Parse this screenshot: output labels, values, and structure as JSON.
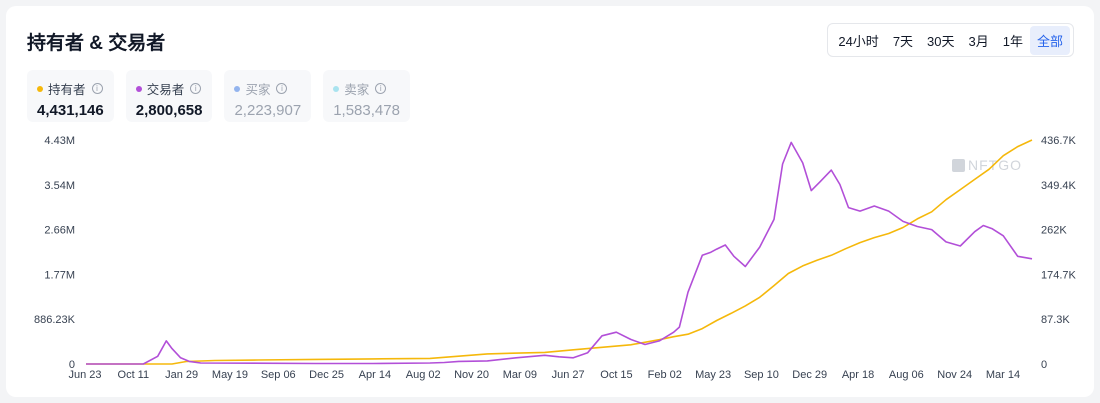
{
  "header": {
    "title": "持有者 & 交易者"
  },
  "range_tabs": [
    {
      "label": "24小时",
      "active": false
    },
    {
      "label": "7天",
      "active": false
    },
    {
      "label": "30天",
      "active": false
    },
    {
      "label": "3月",
      "active": false
    },
    {
      "label": "1年",
      "active": false
    },
    {
      "label": "全部",
      "active": true
    }
  ],
  "legend": [
    {
      "label": "持有者",
      "value": "4,431,146",
      "color": "#f5b80b",
      "enabled": true
    },
    {
      "label": "交易者",
      "value": "2,800,658",
      "color": "#b24fd8",
      "enabled": true
    },
    {
      "label": "买家",
      "value": "2,223,907",
      "color": "#93b4ee",
      "enabled": false
    },
    {
      "label": "卖家",
      "value": "1,583,478",
      "color": "#a9e3ef",
      "enabled": false
    }
  ],
  "watermark": "NFTGO",
  "chart_data": {
    "type": "line",
    "x_tick_labels": [
      "Jun 23",
      "Oct 11",
      "Jan 29",
      "May 19",
      "Sep 06",
      "Dec 25",
      "Apr 14",
      "Aug 02",
      "Nov 20",
      "Mar 09",
      "Jun 27",
      "Oct 15",
      "Feb 02",
      "May 23",
      "Sep 10",
      "Dec 29",
      "Apr 18",
      "Aug 06",
      "Nov 24",
      "Mar 14"
    ],
    "y_left_ticks": [
      "0",
      "886.23K",
      "1.77M",
      "2.66M",
      "3.54M",
      "4.43M"
    ],
    "y_right_ticks": [
      "0",
      "87.3K",
      "174.7K",
      "262K",
      "349.4K",
      "436.7K"
    ],
    "y_left_range": [
      0,
      4430000
    ],
    "y_right_range": [
      0,
      436700
    ],
    "grid": false,
    "series": [
      {
        "name": "持有者",
        "axis": "left",
        "color": "#f5b80b",
        "x": [
          0,
          3,
          3.5,
          4,
          4.5,
          6,
          8,
          10,
          12,
          14,
          16,
          17,
          18,
          19,
          20,
          20.5,
          21,
          21.5,
          22,
          22.5,
          23,
          23.5,
          24,
          24.5,
          25,
          25.5,
          26,
          26.5,
          27,
          27.5,
          28,
          28.5,
          29,
          29.5,
          30,
          30.5,
          31,
          31.5,
          32,
          32.5,
          33
        ],
        "values": [
          0,
          0,
          50000,
          60000,
          70000,
          80000,
          90000,
          100000,
          110000,
          200000,
          230000,
          280000,
          330000,
          380000,
          480000,
          540000,
          590000,
          700000,
          860000,
          1000000,
          1150000,
          1320000,
          1550000,
          1790000,
          1940000,
          2050000,
          2150000,
          2280000,
          2400000,
          2500000,
          2580000,
          2700000,
          2870000,
          3010000,
          3250000,
          3450000,
          3650000,
          3850000,
          4120000,
          4300000,
          4430000
        ]
      },
      {
        "name": "交易者",
        "axis": "right",
        "color": "#b24fd8",
        "x": [
          0,
          1,
          2,
          2.5,
          2.8,
          3,
          3.3,
          3.6,
          4,
          8,
          10,
          12,
          12.5,
          13,
          14,
          15,
          16,
          16.5,
          17,
          17.5,
          18,
          18.5,
          19,
          19.5,
          20,
          20.5,
          20.7,
          21,
          21.5,
          21.8,
          22,
          22.3,
          22.6,
          23,
          23.5,
          24,
          24.3,
          24.6,
          25,
          25.3,
          25.6,
          26,
          26.3,
          26.6,
          27,
          27.5,
          28,
          28.5,
          29,
          29.5,
          30,
          30.5,
          31,
          31.3,
          31.6,
          32,
          32.5,
          33
        ],
        "values": [
          0,
          0,
          0,
          15000,
          45000,
          30000,
          12000,
          5000,
          2000,
          1000,
          1000,
          2000,
          3000,
          5000,
          6000,
          12000,
          17000,
          14000,
          12000,
          22000,
          55000,
          62000,
          48000,
          38000,
          45000,
          62000,
          72000,
          140000,
          212000,
          218000,
          224000,
          232000,
          210000,
          190000,
          228000,
          282000,
          390000,
          432000,
          392000,
          338000,
          355000,
          378000,
          350000,
          305000,
          298000,
          308000,
          298000,
          278000,
          268000,
          262000,
          238000,
          230000,
          258000,
          270000,
          264000,
          250000,
          210000,
          205000
        ]
      }
    ]
  }
}
